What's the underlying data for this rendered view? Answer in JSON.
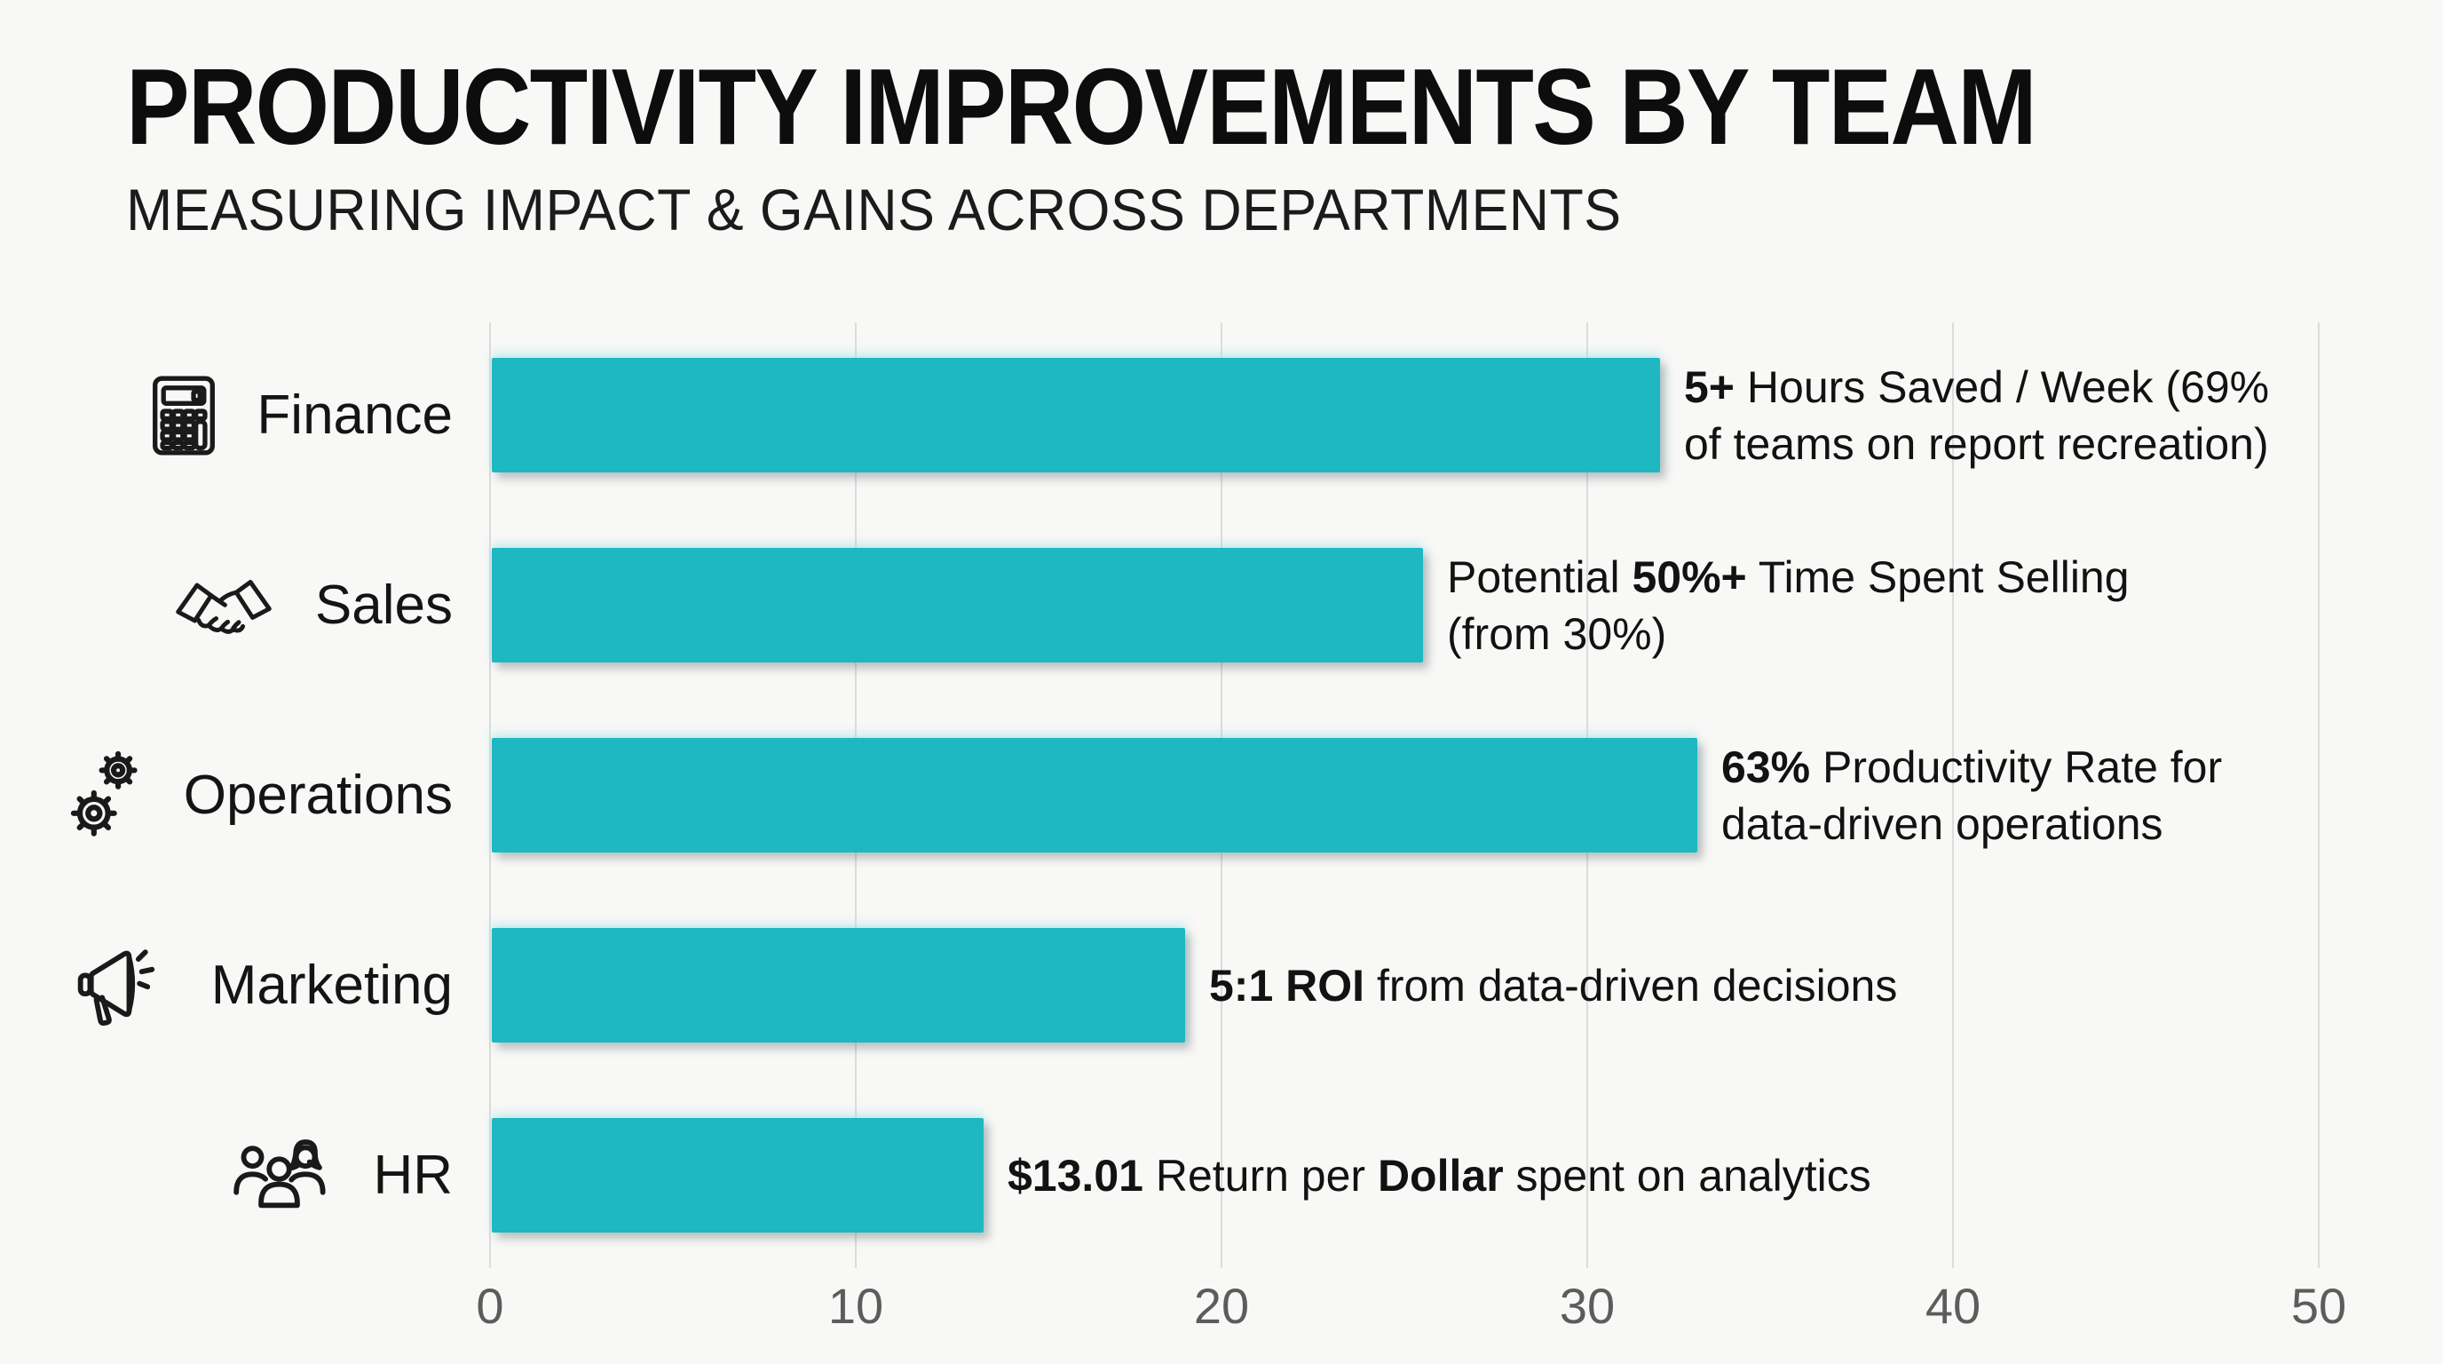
{
  "page": {
    "title": "PRODUCTIVITY IMPROVEMENTS BY TEAM",
    "subtitle": "MEASURING IMPACT & GAINS ACROSS DEPARTMENTS"
  },
  "colors": {
    "bar": "#1db8c1",
    "background": "#f8f8f6",
    "gridline": "#dcdcdc",
    "text": "#121212",
    "tick_label": "#5c5c5c"
  },
  "chart_data": {
    "type": "bar",
    "orientation": "horizontal",
    "title": "PRODUCTIVITY IMPROVEMENTS BY TEAM",
    "subtitle": "MEASURING IMPACT & GAINS ACROSS DEPARTMENTS",
    "xlim": [
      0,
      50
    ],
    "x_ticks": [
      0,
      10,
      20,
      30,
      40,
      50
    ],
    "grid": true,
    "legend": false,
    "categories": [
      "Finance",
      "Sales",
      "Operations",
      "Marketing",
      "HR"
    ],
    "values": [
      32,
      25.5,
      33,
      19,
      13.5
    ],
    "icons": [
      "calculator-icon",
      "handshake-icon",
      "gears-icon",
      "megaphone-icon",
      "people-icon"
    ],
    "annotations": [
      {
        "lines": [
          [
            {
              "t": "5+",
              "b": 1
            },
            {
              "t": " Hours Saved / Week (69%",
              "b": 0
            }
          ],
          [
            {
              "t": "of teams on report recreation)",
              "b": 0
            }
          ]
        ]
      },
      {
        "lines": [
          [
            {
              "t": "Potential ",
              "b": 0
            },
            {
              "t": "50%+",
              "b": 1
            },
            {
              "t": " Time Spent Selling",
              "b": 0
            }
          ],
          [
            {
              "t": "(from 30%)",
              "b": 0
            }
          ]
        ]
      },
      {
        "lines": [
          [
            {
              "t": "63%",
              "b": 1
            },
            {
              "t": " Productivity Rate for",
              "b": 0
            }
          ],
          [
            {
              "t": "data-driven operations",
              "b": 0
            }
          ]
        ]
      },
      {
        "lines": [
          [
            {
              "t": "5:1 ROI",
              "b": 1
            },
            {
              "t": " from data-driven decisions",
              "b": 0
            }
          ]
        ]
      },
      {
        "lines": [
          [
            {
              "t": "$13.01",
              "b": 1
            },
            {
              "t": " Return per ",
              "b": 0
            },
            {
              "t": "Dollar",
              "b": 1
            },
            {
              "t": " spent on analytics",
              "b": 0
            }
          ]
        ]
      }
    ]
  }
}
